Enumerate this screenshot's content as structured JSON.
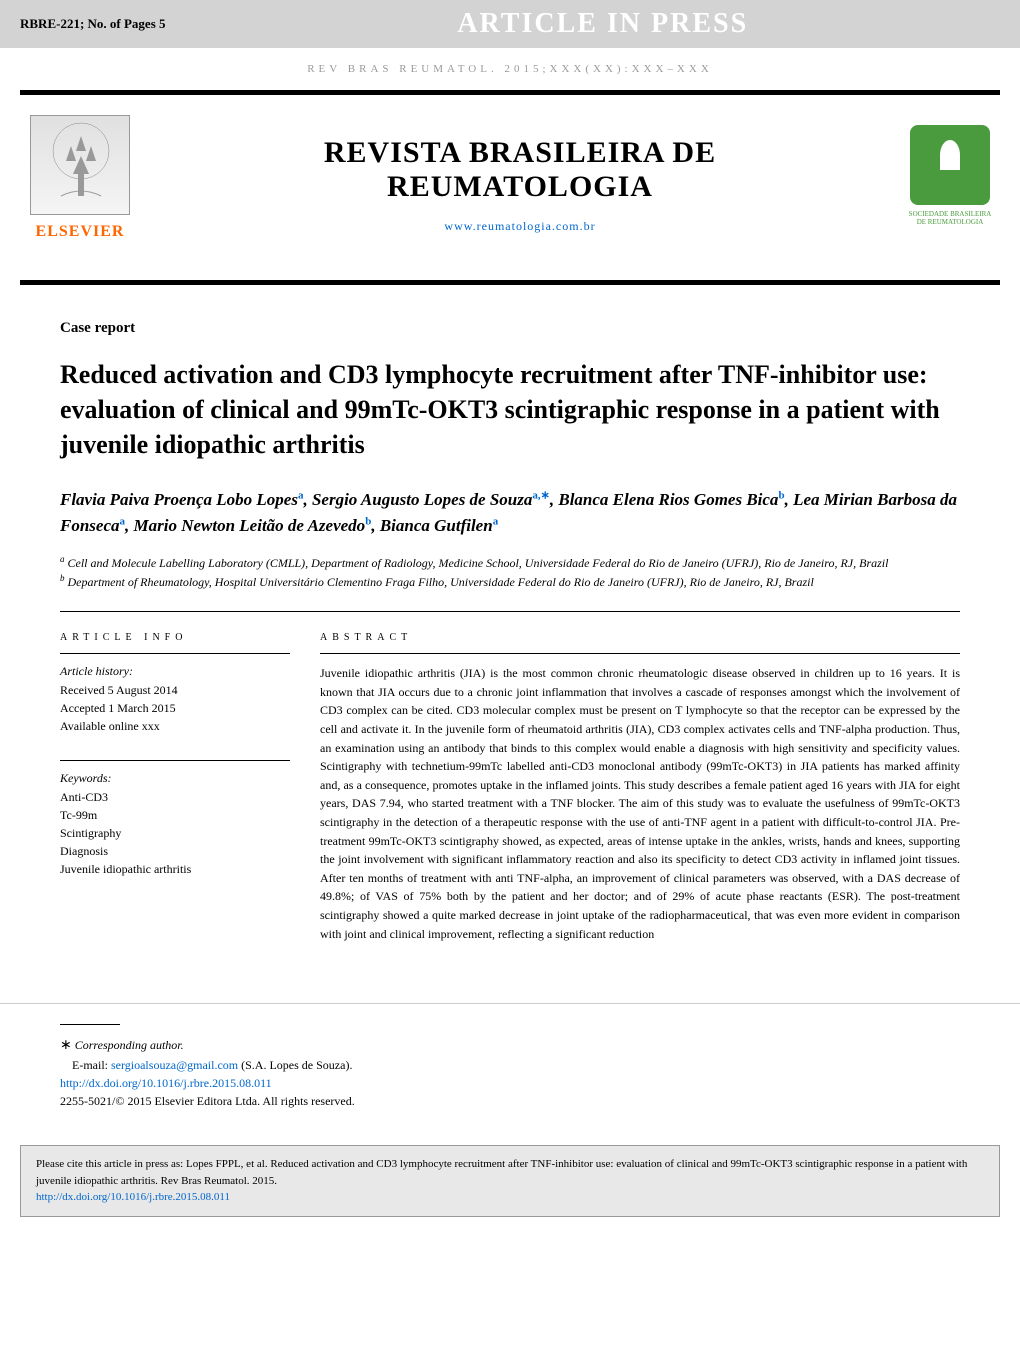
{
  "top_bar": {
    "article_id": "RBRE-221;   No. of Pages 5",
    "banner": "ARTICLE IN PRESS"
  },
  "journal_ref": "REV BRAS REUMATOL. 2015;xxx(xx):xxx–xxx",
  "header": {
    "elsevier_label": "ELSEVIER",
    "journal_title_line1": "REVISTA BRASILEIRA DE",
    "journal_title_line2": "REUMATOLOGIA",
    "journal_url": "www.reumatologia.com.br",
    "society_line1": "SOCIEDADE BRASILEIRA",
    "society_line2": "DE REUMATOLOGIA"
  },
  "article": {
    "type": "Case report",
    "title": "Reduced activation and CD3 lymphocyte recruitment after TNF-inhibitor use: evaluation of clinical and 99mTc-OKT3 scintigraphic response in a patient with juvenile idiopathic arthritis",
    "authors_html": "Flavia Paiva Proença Lobo Lopes<sup>a</sup>, Sergio Augusto Lopes de Souza<sup>a,∗</sup>, Blanca Elena Rios Gomes Bica<sup>b</sup>, Lea Mirian Barbosa da Fonseca<sup>a</sup>, Mario Newton Leitão de Azevedo<sup>b</sup>, Bianca Gutfilen<sup>a</sup>",
    "affiliations": [
      "Cell and Molecule Labelling Laboratory (CMLL), Department of Radiology, Medicine School, Universidade Federal do Rio de Janeiro (UFRJ), Rio de Janeiro, RJ, Brazil",
      "Department of Rheumatology, Hospital Universitário Clementino Fraga Filho, Universidade Federal do Rio de Janeiro (UFRJ), Rio de Janeiro, RJ, Brazil"
    ],
    "affiliation_markers": [
      "a",
      "b"
    ]
  },
  "sidebar": {
    "info_heading": "article info",
    "history_label": "Article history:",
    "history": [
      "Received 5 August 2014",
      "Accepted 1 March 2015",
      "Available online xxx"
    ],
    "keywords_label": "Keywords:",
    "keywords": [
      "Anti-CD3",
      "Tc-99m",
      "Scintigraphy",
      "Diagnosis",
      "Juvenile idiopathic arthritis"
    ]
  },
  "abstract": {
    "heading": "abstract",
    "text": "Juvenile idiopathic arthritis (JIA) is the most common chronic rheumatologic disease observed in children up to 16 years. It is known that JIA occurs due to a chronic joint inflammation that involves a cascade of responses amongst which the involvement of CD3 complex can be cited. CD3 molecular complex must be present on T lymphocyte so that the receptor can be expressed by the cell and activate it. In the juvenile form of rheumatoid arthritis (JIA), CD3 complex activates cells and TNF-alpha production. Thus, an examination using an antibody that binds to this complex would enable a diagnosis with high sensitivity and specificity values. Scintigraphy with technetium-99mTc labelled anti-CD3 monoclonal antibody (99mTc-OKT3) in JIA patients has marked affinity and, as a consequence, promotes uptake in the inflamed joints. This study describes a female patient aged 16 years with JIA for eight years, DAS 7.94, who started treatment with a TNF blocker. The aim of this study was to evaluate the usefulness of 99mTc-OKT3 scintigraphy in the detection of a therapeutic response with the use of anti-TNF agent in a patient with difficult-to-control JIA. Pre-treatment 99mTc-OKT3 scintigraphy showed, as expected, areas of intense uptake in the ankles, wrists, hands and knees, supporting the joint involvement with significant inflammatory reaction and also its specificity to detect CD3 activity in inflamed joint tissues. After ten months of treatment with anti TNF-alpha, an improvement of clinical parameters was observed, with a DAS decrease of 49.8%; of VAS of 75% both by the patient and her doctor; and of 29% of acute phase reactants (ESR). The post-treatment scintigraphy showed a quite marked decrease in joint uptake of the radiopharmaceutical, that was even more evident in comparison with joint and clinical improvement, reflecting a significant reduction"
  },
  "footer": {
    "corresp_label": "Corresponding author.",
    "email_label": "E-mail:",
    "email": "sergioalsouza@gmail.com",
    "email_author": "(S.A. Lopes de Souza).",
    "doi": "http://dx.doi.org/10.1016/j.rbre.2015.08.011",
    "copyright": "2255-5021/© 2015 Elsevier Editora Ltda. All rights reserved."
  },
  "citation": {
    "text": "Please cite this article in press as: Lopes FPPL, et al. Reduced activation and CD3 lymphocyte recruitment after TNF-inhibitor use: evaluation of clinical and 99mTc-OKT3 scintigraphic response in a patient with juvenile idiopathic arthritis. Rev Bras Reumatol. 2015.",
    "link": "http://dx.doi.org/10.1016/j.rbre.2015.08.011"
  },
  "colors": {
    "top_bar_bg": "#d3d3d3",
    "banner_text": "#ffffff",
    "link": "#0066cc",
    "elsevier_orange": "#ff6600",
    "society_green": "#4a9b3e",
    "citation_bg": "#e8e8e8"
  }
}
